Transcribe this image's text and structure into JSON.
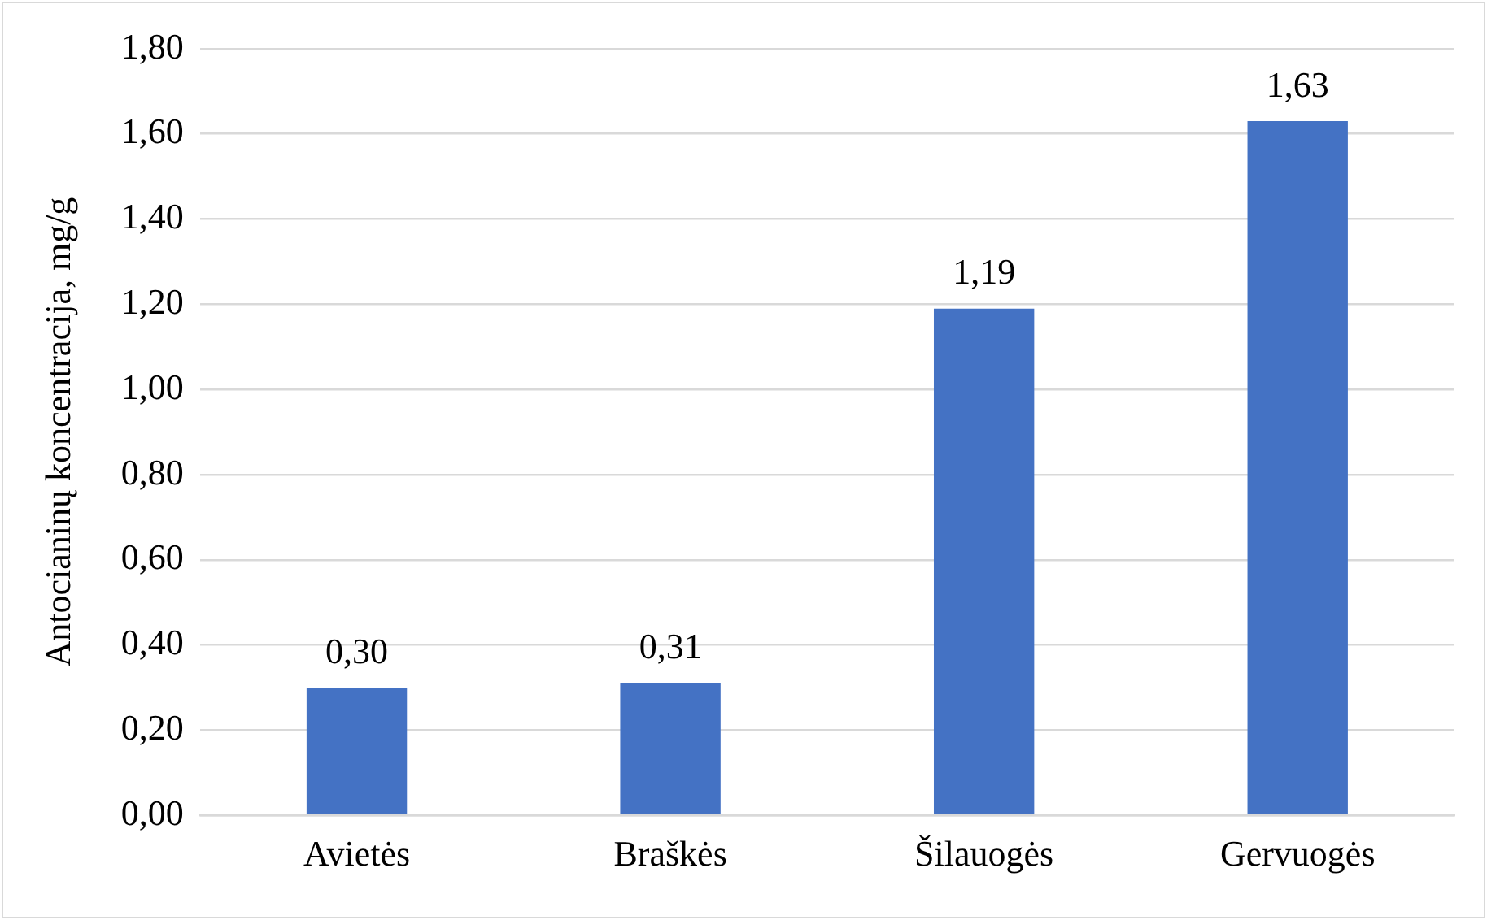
{
  "chart_data": {
    "type": "bar",
    "ylabel": "Antocianinų koncentracija, mg/g",
    "categories": [
      "Avietės",
      "Braškės",
      "Šilauogės",
      "Gervuogės"
    ],
    "values": [
      0.3,
      0.31,
      1.19,
      1.63
    ],
    "value_labels": [
      "0,30",
      "0,31",
      "1,19",
      "1,63"
    ],
    "color": "#4472c4",
    "ylim": [
      0,
      1.8
    ],
    "yticks": [
      {
        "value": 0,
        "label": "0,00"
      },
      {
        "value": 0.2,
        "label": "0,20"
      },
      {
        "value": 0.4,
        "label": "0,40"
      },
      {
        "value": 0.6,
        "label": "0,60"
      },
      {
        "value": 0.8,
        "label": "0,80"
      },
      {
        "value": 1.0,
        "label": "1,00"
      },
      {
        "value": 1.2,
        "label": "1,20"
      },
      {
        "value": 1.4,
        "label": "1,40"
      },
      {
        "value": 1.6,
        "label": "1,60"
      },
      {
        "value": 1.8,
        "label": "1,80"
      }
    ],
    "grid": "y",
    "legend": false
  }
}
